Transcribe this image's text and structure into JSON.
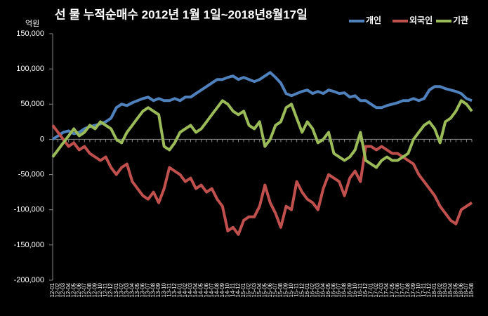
{
  "chart_data": {
    "type": "line",
    "title": "선 물  누적순매수  2012년 1월 1일~2018년8월17일",
    "y_label": "억원",
    "categories": [
      "12-01",
      "12-02",
      "12-03",
      "12-04",
      "12-05",
      "12-06",
      "12-07",
      "12-08",
      "12-09",
      "12-10",
      "12-11",
      "12-12",
      "13-01",
      "13-02",
      "13-03",
      "13-04",
      "13-05",
      "13-06",
      "13-07",
      "13-08",
      "13-09",
      "13-10",
      "13-11",
      "13-12",
      "14-01",
      "14-02",
      "14-03",
      "14-04",
      "14-05",
      "14-06",
      "14-07",
      "14-08",
      "14-09",
      "14-10",
      "14-11",
      "14-12",
      "15-01",
      "15-02",
      "15-03",
      "15-04",
      "15-05",
      "15-06",
      "15-07",
      "15-08",
      "15-09",
      "15-10",
      "15-11",
      "15-12",
      "16-01",
      "16-02",
      "16-03",
      "16-04",
      "16-05",
      "16-06",
      "16-07",
      "16-08",
      "16-09",
      "16-10",
      "16-11",
      "16-12",
      "17-01",
      "17-02",
      "17-03",
      "17-04",
      "17-05",
      "17-06",
      "17-07",
      "17-08",
      "17-09",
      "17-10",
      "17-11",
      "17-12",
      "18-01",
      "18-02",
      "18-03",
      "18-04",
      "18-05",
      "18-06",
      "18-07",
      "18-08"
    ],
    "series": [
      {
        "name": "개인",
        "color": "#4f81bd",
        "values": [
          0,
          5000,
          10000,
          12000,
          8000,
          10000,
          15000,
          18000,
          20000,
          22000,
          25000,
          30000,
          45000,
          50000,
          48000,
          52000,
          55000,
          58000,
          60000,
          55000,
          58000,
          55000,
          55000,
          58000,
          55000,
          60000,
          60000,
          65000,
          70000,
          75000,
          80000,
          85000,
          85000,
          88000,
          90000,
          85000,
          88000,
          85000,
          82000,
          85000,
          90000,
          95000,
          88000,
          80000,
          65000,
          62000,
          65000,
          68000,
          70000,
          65000,
          68000,
          65000,
          70000,
          68000,
          65000,
          66000,
          60000,
          62000,
          55000,
          55000,
          50000,
          45000,
          45000,
          48000,
          50000,
          52000,
          55000,
          55000,
          58000,
          55000,
          58000,
          70000,
          75000,
          75000,
          72000,
          70000,
          68000,
          65000,
          58000,
          55000
        ]
      },
      {
        "name": "외국인",
        "color": "#c0504d",
        "values": [
          20000,
          10000,
          0,
          -10000,
          -5000,
          -15000,
          -10000,
          -20000,
          -25000,
          -30000,
          -25000,
          -40000,
          -50000,
          -40000,
          -35000,
          -60000,
          -70000,
          -80000,
          -85000,
          -75000,
          -90000,
          -70000,
          -40000,
          -45000,
          -50000,
          -60000,
          -55000,
          -70000,
          -65000,
          -75000,
          -70000,
          -85000,
          -95000,
          -130000,
          -125000,
          -135000,
          -115000,
          -110000,
          -110000,
          -95000,
          -65000,
          -90000,
          -105000,
          -125000,
          -95000,
          -100000,
          -60000,
          -75000,
          -85000,
          -90000,
          -100000,
          -70000,
          -50000,
          -55000,
          -60000,
          -80000,
          -55000,
          -45000,
          -60000,
          -10000,
          -10000,
          -15000,
          -10000,
          -15000,
          -20000,
          -20000,
          -25000,
          -30000,
          -35000,
          -50000,
          -60000,
          -70000,
          -80000,
          -95000,
          -105000,
          -115000,
          -120000,
          -100000,
          -95000,
          -90000
        ]
      },
      {
        "name": "기관",
        "color": "#9bbb59",
        "values": [
          -25000,
          -15000,
          -5000,
          5000,
          15000,
          5000,
          10000,
          20000,
          15000,
          25000,
          20000,
          15000,
          0,
          -5000,
          10000,
          20000,
          30000,
          40000,
          45000,
          40000,
          35000,
          -10000,
          -15000,
          -5000,
          10000,
          15000,
          20000,
          10000,
          15000,
          25000,
          35000,
          45000,
          55000,
          50000,
          40000,
          35000,
          40000,
          20000,
          15000,
          25000,
          -10000,
          0,
          20000,
          25000,
          45000,
          50000,
          30000,
          10000,
          25000,
          15000,
          -5000,
          0,
          10000,
          -20000,
          -25000,
          -30000,
          -25000,
          -15000,
          10000,
          -30000,
          -35000,
          -40000,
          -30000,
          -25000,
          -30000,
          -30000,
          -25000,
          -20000,
          0,
          10000,
          20000,
          25000,
          15000,
          -5000,
          25000,
          30000,
          40000,
          55000,
          50000,
          40000
        ]
      }
    ],
    "ylim": [
      -200000,
      150000
    ],
    "yticks": [
      {
        "value": -200000,
        "label": "-200,000"
      },
      {
        "value": -150000,
        "label": "-150,000"
      },
      {
        "value": -100000,
        "label": "-100,000"
      },
      {
        "value": -50000,
        "label": "-50,000"
      },
      0,
      {
        "value": 50000,
        "label": "50,000"
      },
      {
        "value": 100000,
        "label": "100,000"
      },
      {
        "value": 150000,
        "label": "150,000"
      }
    ],
    "legend": "top-right"
  }
}
